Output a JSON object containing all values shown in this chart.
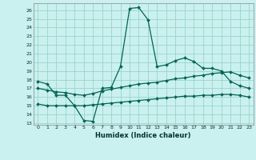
{
  "xlabel": "Humidex (Indice chaleur)",
  "ylabel": "",
  "bg_color": "#caf0f0",
  "grid_color": "#90d0c0",
  "line_color": "#006655",
  "xlim": [
    -0.5,
    23.5
  ],
  "ylim": [
    12.8,
    26.8
  ],
  "yticks": [
    13,
    14,
    15,
    16,
    17,
    18,
    19,
    20,
    21,
    22,
    23,
    24,
    25,
    26
  ],
  "xticks": [
    0,
    1,
    2,
    3,
    4,
    5,
    6,
    7,
    8,
    9,
    10,
    11,
    12,
    13,
    14,
    15,
    16,
    17,
    18,
    19,
    20,
    21,
    22,
    23
  ],
  "series": [
    {
      "x": [
        0,
        1,
        2,
        3,
        4,
        5,
        6,
        7,
        8,
        9,
        10,
        11,
        12,
        13,
        14,
        15,
        16,
        17,
        18,
        19,
        20,
        21,
        22,
        23
      ],
      "y": [
        17.8,
        17.5,
        16.2,
        16.2,
        15.0,
        13.3,
        13.2,
        17.0,
        17.1,
        19.5,
        26.2,
        26.3,
        24.9,
        19.5,
        19.7,
        20.2,
        20.5,
        20.1,
        19.3,
        19.3,
        19.0,
        17.8,
        17.3,
        17.0
      ]
    },
    {
      "x": [
        0,
        1,
        2,
        3,
        4,
        5,
        6,
        7,
        8,
        9,
        10,
        11,
        12,
        13,
        14,
        15,
        16,
        17,
        18,
        19,
        20,
        21,
        22,
        23
      ],
      "y": [
        17.0,
        16.8,
        16.6,
        16.5,
        16.3,
        16.2,
        16.4,
        16.7,
        16.9,
        17.1,
        17.3,
        17.5,
        17.6,
        17.7,
        17.9,
        18.1,
        18.2,
        18.4,
        18.5,
        18.7,
        18.8,
        18.9,
        18.5,
        18.2
      ]
    },
    {
      "x": [
        0,
        1,
        2,
        3,
        4,
        5,
        6,
        7,
        8,
        9,
        10,
        11,
        12,
        13,
        14,
        15,
        16,
        17,
        18,
        19,
        20,
        21,
        22,
        23
      ],
      "y": [
        15.2,
        15.0,
        15.0,
        15.0,
        15.0,
        15.0,
        15.1,
        15.2,
        15.3,
        15.4,
        15.5,
        15.6,
        15.7,
        15.8,
        15.9,
        16.0,
        16.1,
        16.1,
        16.2,
        16.2,
        16.3,
        16.3,
        16.2,
        16.0
      ]
    }
  ]
}
